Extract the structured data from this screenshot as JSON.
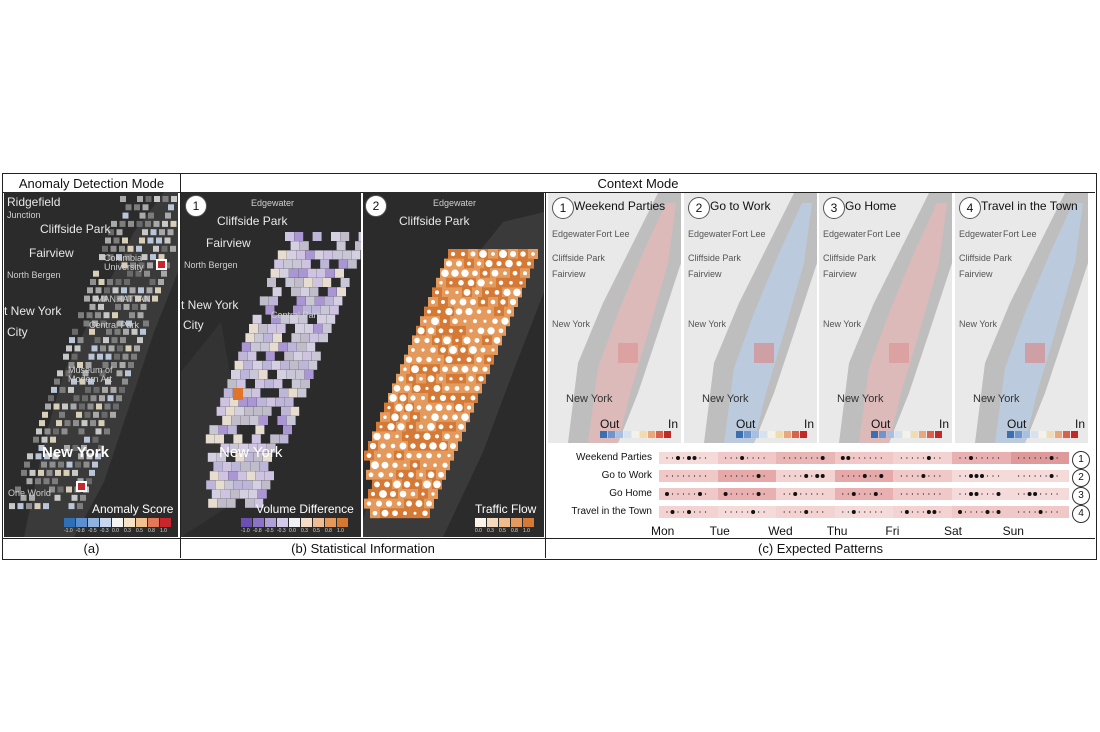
{
  "header": {
    "left_title": "Anomaly Detection Mode",
    "right_title": "Context Mode"
  },
  "captions": {
    "a": "(a)",
    "b": "(b)  Statistical Information",
    "c": "(c)  Expected Patterns"
  },
  "panel_a": {
    "labels": [
      "Ridgefield",
      "Cliffside Park",
      "Junction",
      "Fairview",
      "North Bergen",
      "Columbia University",
      "MANHATTAN",
      "t New York",
      "City",
      "Central Park",
      "Museum of Modern Art",
      "New York",
      "One World"
    ],
    "legend_title": "Anomaly Score",
    "legend_ticks": [
      "-1.0",
      "-0.8",
      "-0.5",
      "-0.3",
      "0.0",
      "0.3",
      "0.5",
      "0.8",
      "1.0"
    ],
    "legend_colors": [
      "#2f6fb5",
      "#5b8fcf",
      "#8fb2de",
      "#c5d6ee",
      "#f3f3f3",
      "#f5e3c8",
      "#f0c08f",
      "#e2775a",
      "#c8262a"
    ]
  },
  "panel_b1": {
    "badge": "1",
    "labels": [
      "Edgewater",
      "Cliffside Park",
      "Fairview",
      "North Bergen",
      "t New York",
      "City",
      "Central Park",
      "New York"
    ],
    "legend_title": "Volume Difference",
    "legend_ticks": [
      "-1.0",
      "-0.8",
      "-0.5",
      "-0.3",
      "0.0",
      "0.3",
      "0.5",
      "0.8",
      "1.0"
    ],
    "legend_colors": [
      "#6b4fb3",
      "#8c73c6",
      "#b0a0d8",
      "#d3caea",
      "#f1f0f4",
      "#f4dcc6",
      "#efbd93",
      "#e59858",
      "#d6782f"
    ]
  },
  "panel_b2": {
    "badge": "2",
    "labels": [
      "Edgewater",
      "Cliffside Park"
    ],
    "legend_title": "Traffic Flow",
    "legend_ticks": [
      "0.0",
      "0.3",
      "0.5",
      "0.8",
      "1.0"
    ],
    "legend_colors": [
      "#fbf3ea",
      "#f5d9bd",
      "#eebb8d",
      "#e49a5d",
      "#d57a36"
    ]
  },
  "context_panels": [
    {
      "badge": "1",
      "title": "Weekend Parties",
      "out": "Out",
      "in": "In"
    },
    {
      "badge": "2",
      "title": "Go to Work",
      "out": "Out",
      "in": "In"
    },
    {
      "badge": "3",
      "title": "Go Home",
      "out": "Out",
      "in": "In"
    },
    {
      "badge": "4",
      "title": "Travel in the Town",
      "out": "Out",
      "in": "In"
    }
  ],
  "context_map_labels": [
    "Fort Lee",
    "Edgewater",
    "Cliffside Park",
    "Fairview",
    "New York",
    "New York"
  ],
  "context_legend_colors": [
    "#3b6fb0",
    "#6f96cc",
    "#a7c0e2",
    "#d7e2f1",
    "#f4f1e7",
    "#f1dcb0",
    "#e9a77c",
    "#d9624c",
    "#c22a2a"
  ],
  "patterns": {
    "rows": [
      {
        "label": "Weekend Parties",
        "num": "1"
      },
      {
        "label": "Go to Work",
        "num": "2"
      },
      {
        "label": "Go Home",
        "num": "3"
      },
      {
        "label": "Travel in the Town",
        "num": "4"
      }
    ],
    "days": [
      "Mon",
      "Tue",
      "Wed",
      "Thu",
      "Fri",
      "Sat",
      "Sun"
    ]
  }
}
